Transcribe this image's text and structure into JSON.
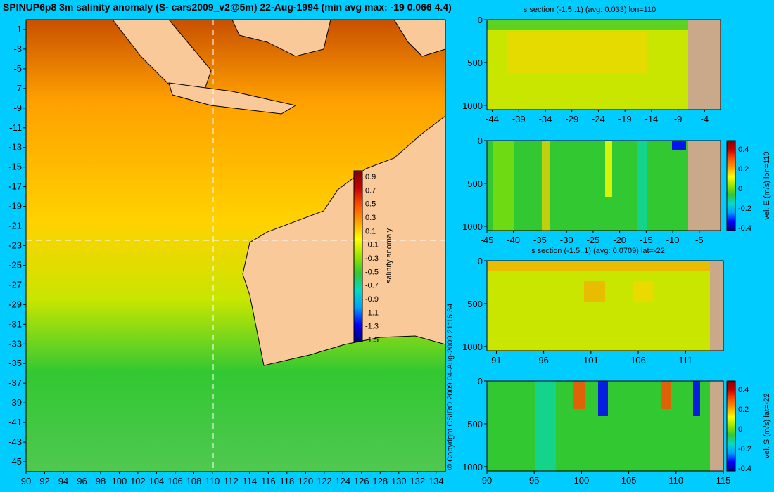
{
  "title": "SPINUP6p8 3m salinity anomaly (S- cars2009_v2@5m) 22-Aug-1994 (min avg max: -19 0.066 4.4)",
  "copyright": "© Copyright CSIRO 2009  04-Aug-2009 21:16:34",
  "colors": {
    "background": "#00ccff",
    "land": "#f9c99a",
    "seabed": "#c9a98a"
  },
  "colormap": [
    "#00007f",
    "#0000ff",
    "#00a0ff",
    "#00dcc8",
    "#32c832",
    "#96e600",
    "#ffff00",
    "#ffa000",
    "#ff5000",
    "#c80000",
    "#800000"
  ],
  "chart_data": [
    {
      "type": "heatmap",
      "description_key": "map",
      "xlabel": "",
      "ylabel": "",
      "x_ticks": [
        90,
        92,
        94,
        96,
        98,
        100,
        102,
        104,
        106,
        108,
        110,
        112,
        114,
        116,
        118,
        120,
        122,
        124,
        126,
        128,
        130,
        132,
        134
      ],
      "y_ticks": [
        -1,
        -3,
        -5,
        -7,
        -9,
        -11,
        -13,
        -15,
        -17,
        -19,
        -21,
        -23,
        -25,
        -27,
        -29,
        -31,
        -33,
        -35,
        -37,
        -39,
        -41,
        -43,
        -45
      ],
      "xlim": [
        90,
        135
      ],
      "ylim": [
        -46,
        0
      ],
      "crosshair": {
        "lon": 110,
        "lat": -22
      },
      "colorbar": {
        "label": "salinity anomaly",
        "ticks": [
          "0.9",
          "0.7",
          "0.5",
          "0.3",
          "0.1",
          "-0.1",
          "-0.3",
          "-0.5",
          "-0.7",
          "-0.9",
          "-1.1",
          "-1.3",
          "-1.5"
        ],
        "range": [
          -1.5,
          1.0
        ]
      }
    },
    {
      "type": "heatmap",
      "title": "s section (-1.5..1) (avg: 0.033) lon=110",
      "x_ticks": [
        -44,
        -39,
        -34,
        -29,
        -24,
        -19,
        -14,
        -9,
        -4
      ],
      "y_ticks": [
        0,
        500,
        1000
      ],
      "xlim": [
        -45,
        -1
      ],
      "ylim": [
        1050,
        0
      ]
    },
    {
      "type": "heatmap",
      "title": "",
      "x_ticks": [
        -45,
        -40,
        -35,
        -30,
        -25,
        -20,
        -15,
        -10,
        -5
      ],
      "y_ticks": [
        0,
        500,
        1000
      ],
      "xlim": [
        -45,
        -1
      ],
      "ylim": [
        1050,
        0
      ],
      "colorbar": {
        "label": "vel. E (m/s) lon=110",
        "ticks": [
          "0.4",
          "0.2",
          "0",
          "-0.2",
          "-0.4"
        ],
        "range": [
          -0.45,
          0.45
        ]
      }
    },
    {
      "type": "heatmap",
      "title": "s section (-1.5..1) (avg: 0.0709) lat=-22",
      "x_ticks": [
        91,
        96,
        101,
        106,
        111
      ],
      "y_ticks": [
        0,
        500,
        1000
      ],
      "xlim": [
        90,
        115
      ],
      "ylim": [
        1050,
        0
      ]
    },
    {
      "type": "heatmap",
      "title": "",
      "x_ticks": [
        90,
        95,
        100,
        105,
        110,
        115
      ],
      "y_ticks": [
        0,
        500,
        1000
      ],
      "xlim": [
        90,
        115
      ],
      "ylim": [
        1050,
        0
      ],
      "colorbar": {
        "label": "vel. S (m/s) lat=-22",
        "ticks": [
          "0.4",
          "0.2",
          "0",
          "-0.2",
          "-0.4"
        ],
        "range": [
          -0.45,
          0.45
        ]
      }
    }
  ]
}
